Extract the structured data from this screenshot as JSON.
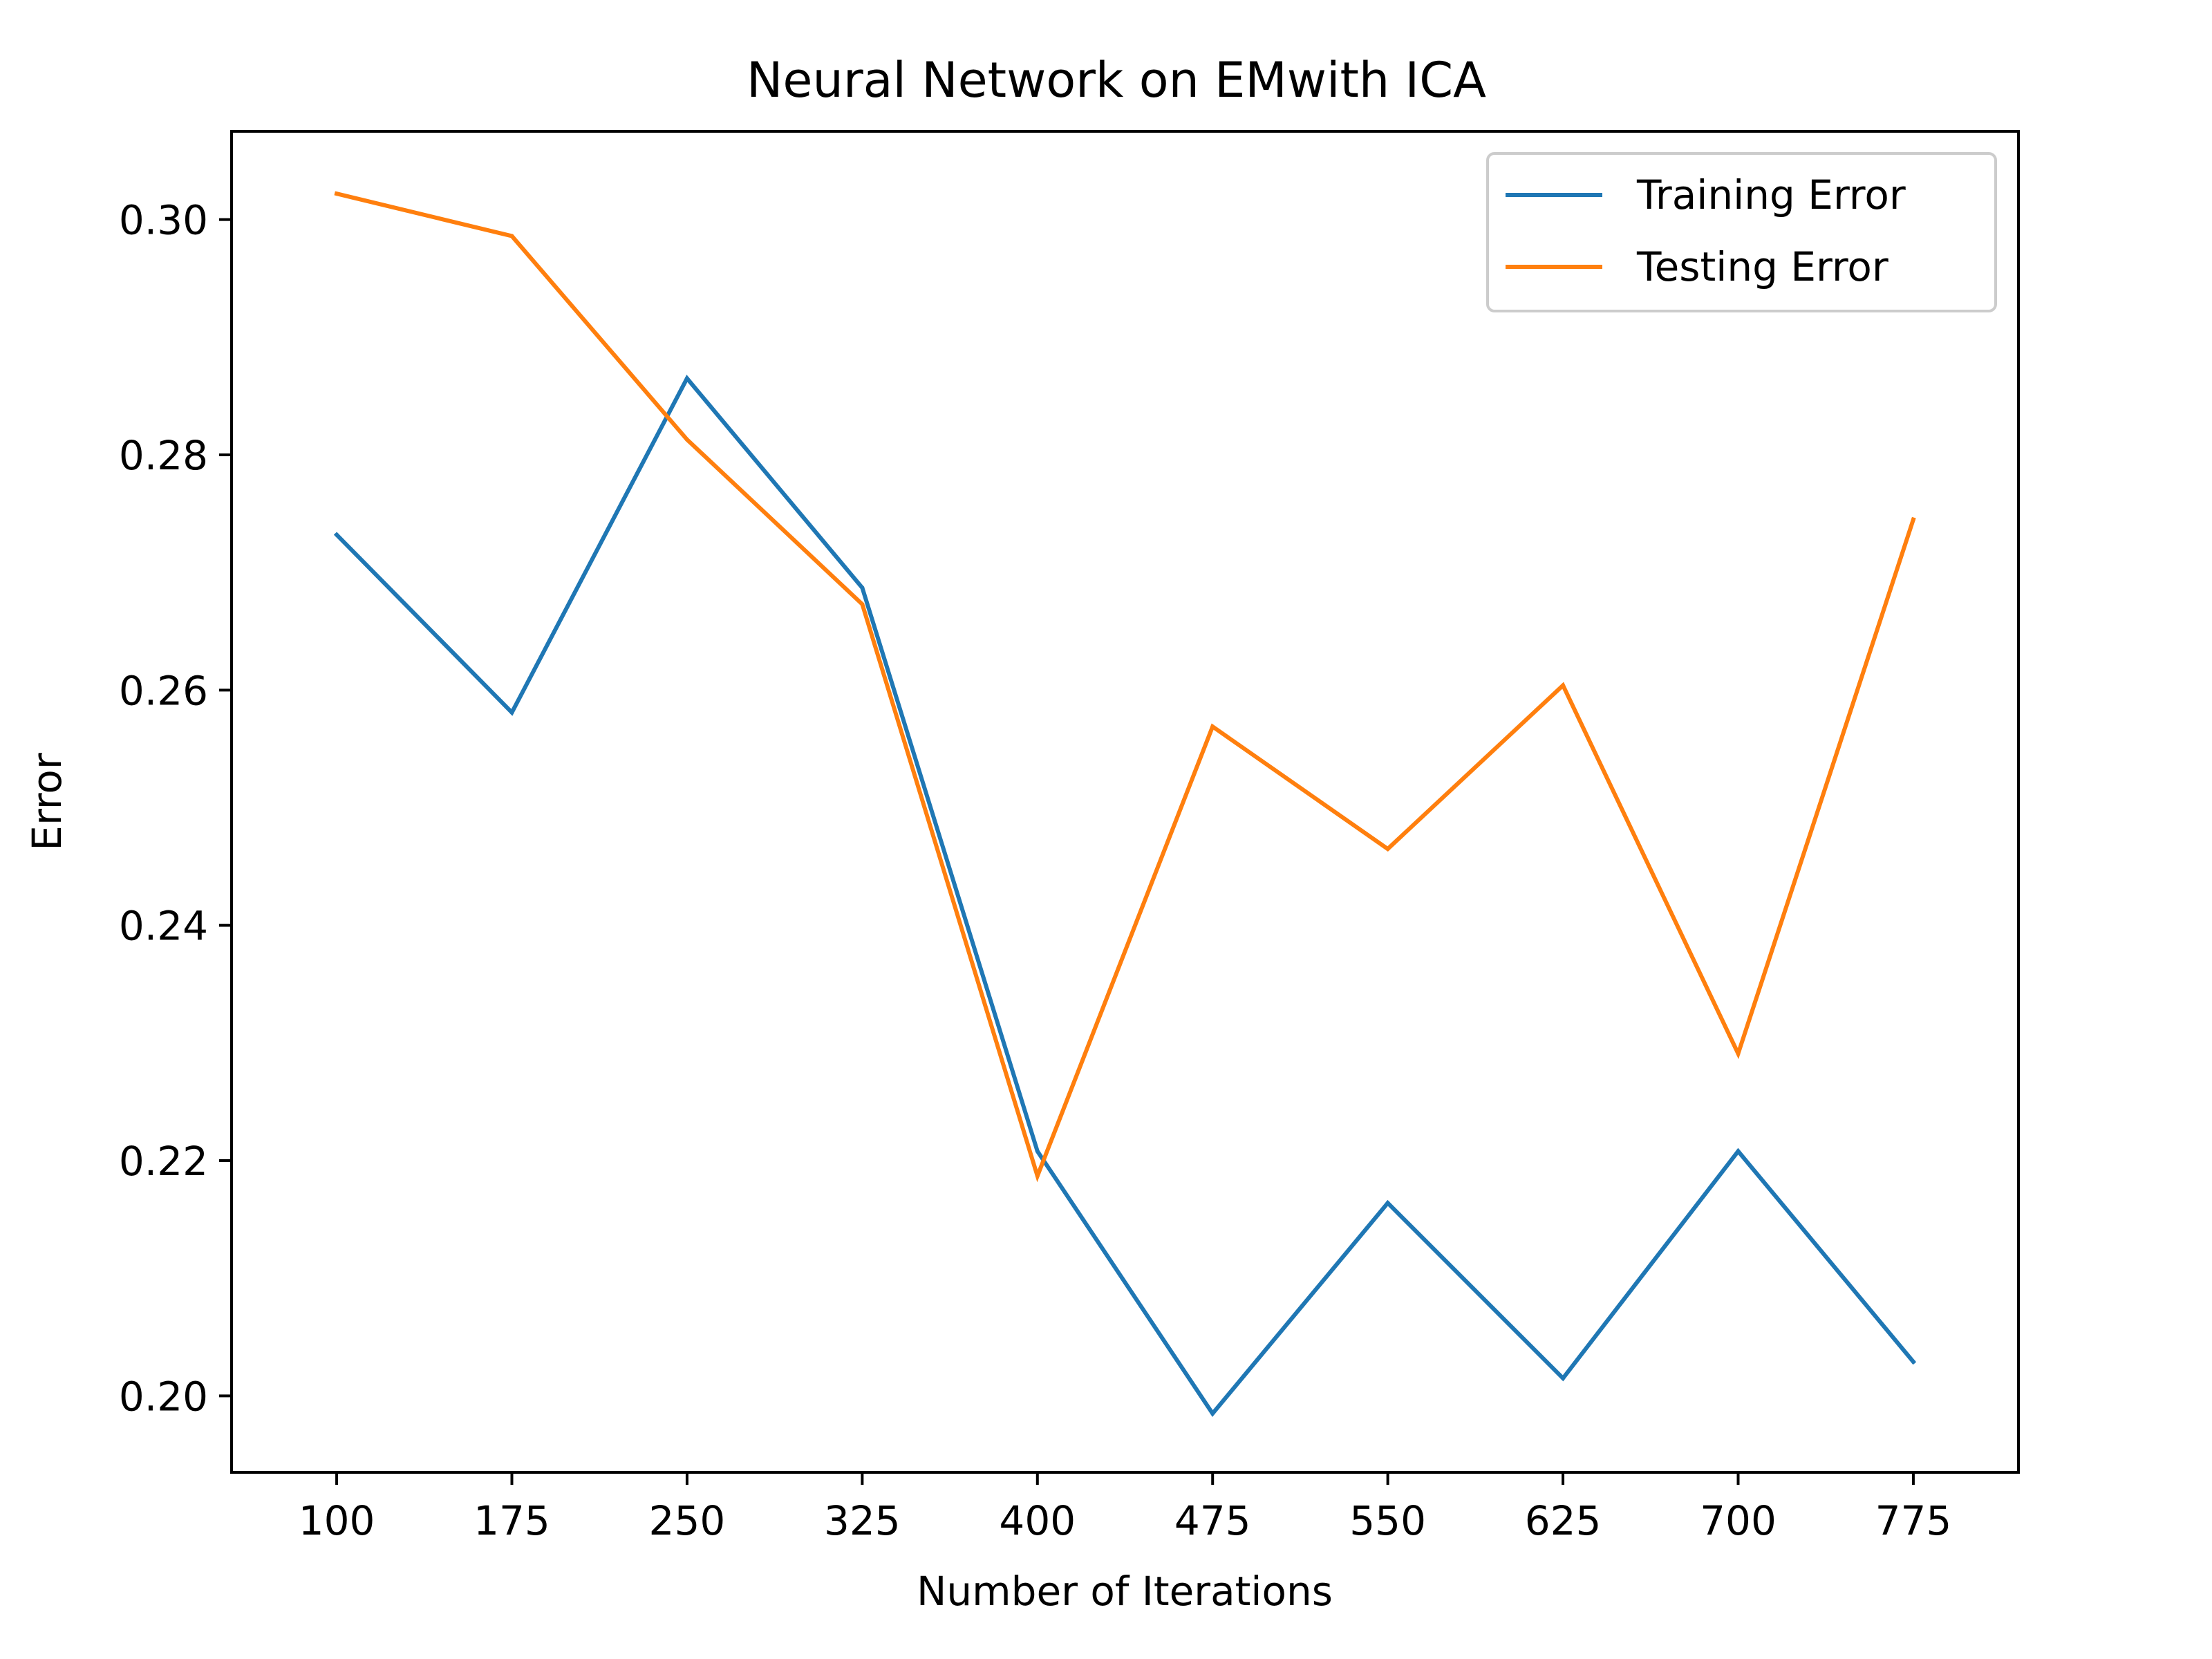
{
  "chart_data": {
    "type": "line",
    "title": "Neural Network on EMwith ICA",
    "xlabel": "Number of Iterations",
    "ylabel": "Error",
    "x": [
      100,
      175,
      250,
      325,
      400,
      475,
      550,
      625,
      700,
      775
    ],
    "xticks": [
      "100",
      "175",
      "250",
      "325",
      "400",
      "475",
      "550",
      "625",
      "700",
      "775"
    ],
    "yticks": [
      "0.20",
      "0.22",
      "0.24",
      "0.26",
      "0.28",
      "0.30"
    ],
    "ylim": [
      0.1935,
      0.3075
    ],
    "grid": false,
    "legend_position": "top-right",
    "series": [
      {
        "name": "Training Error",
        "color": "#1f77b4",
        "values": [
          0.2732,
          0.2581,
          0.2865,
          0.2687,
          0.2208,
          0.1985,
          0.2164,
          0.2015,
          0.2208,
          0.2029
        ]
      },
      {
        "name": "Testing Error",
        "color": "#ff7f0e",
        "values": [
          0.3022,
          0.2986,
          0.2813,
          0.2673,
          0.2187,
          0.2569,
          0.2465,
          0.2604,
          0.2291,
          0.2745
        ]
      }
    ]
  }
}
